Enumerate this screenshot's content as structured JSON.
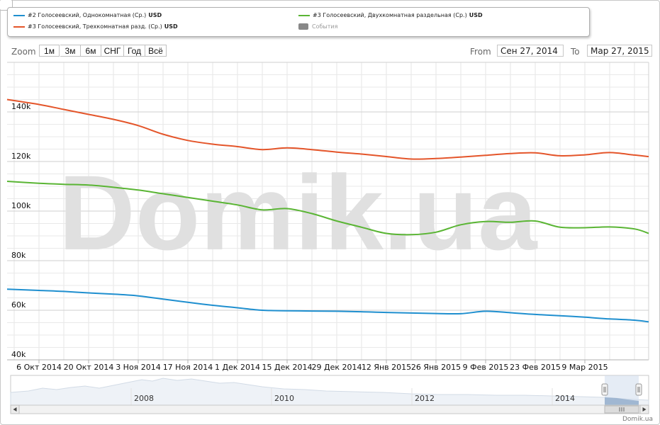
{
  "legend": [
    {
      "label": "#2 Голосеевский, Однокомнатная (Ср.)",
      "unit": "USD",
      "color": "#1f8fcf",
      "kind": "line"
    },
    {
      "label": "#3 Голосеевский, Двухкомнатная раздельная (Ср.)",
      "unit": "USD",
      "color": "#5ab534",
      "kind": "line"
    },
    {
      "label": "#3 Голосеевский, Трехкомнатная разд. (Ср.)",
      "unit": "USD",
      "color": "#e4552a",
      "kind": "line"
    },
    {
      "label": "События",
      "unit": "",
      "color": "#888888",
      "kind": "box"
    }
  ],
  "range_selector": {
    "zoom_label": "Zoom",
    "buttons": [
      "1м",
      "3м",
      "6м",
      "СНГ",
      "Год",
      "Всё"
    ],
    "from_label": "From",
    "from_value": "Сен 27, 2014",
    "to_label": "To",
    "to_value": "Мар 27, 2015"
  },
  "watermark": "Domik.ua",
  "credit": "Domik.ua",
  "chart_data": {
    "type": "line",
    "x_dates": [
      "2014-09-27",
      "2014-10-06",
      "2014-10-13",
      "2014-10-20",
      "2014-10-27",
      "2014-11-03",
      "2014-11-10",
      "2014-11-17",
      "2014-11-24",
      "2014-12-01",
      "2014-12-08",
      "2014-12-15",
      "2014-12-22",
      "2014-12-29",
      "2015-01-05",
      "2015-01-12",
      "2015-01-19",
      "2015-01-26",
      "2015-02-02",
      "2015-02-09",
      "2015-02-16",
      "2015-02-23",
      "2015-03-02",
      "2015-03-09",
      "2015-03-16",
      "2015-03-23",
      "2015-03-27"
    ],
    "series": [
      {
        "name": "#2 Голосеевский, Однокомнатная (Ср.)",
        "color": "#1f8fcf",
        "values": [
          68500,
          68000,
          67600,
          67000,
          66500,
          65800,
          64500,
          63200,
          62000,
          61000,
          60000,
          59800,
          59700,
          59600,
          59400,
          59100,
          58900,
          58700,
          58600,
          59600,
          59000,
          58300,
          57800,
          57200,
          56500,
          56000,
          55300
        ]
      },
      {
        "name": "#3 Голосеевский, Двухкомнатная раздельная (Ср.)",
        "color": "#5ab534",
        "values": [
          112000,
          111200,
          110800,
          110500,
          109600,
          108500,
          107000,
          105500,
          104000,
          102500,
          100500,
          101000,
          99000,
          96000,
          93500,
          91000,
          90500,
          91500,
          94500,
          95800,
          95500,
          96000,
          93500,
          93300,
          93600,
          92800,
          91000
        ]
      },
      {
        "name": "#3 Голосеевский, Трехкомнатная разд. (Ср.)",
        "color": "#e4552a",
        "values": [
          145000,
          143000,
          141000,
          139000,
          137000,
          134500,
          131000,
          128500,
          127000,
          126000,
          124800,
          125500,
          124800,
          123800,
          123000,
          122000,
          121000,
          121200,
          121800,
          122500,
          123200,
          123500,
          122300,
          122700,
          123600,
          122600,
          122000
        ]
      }
    ],
    "yticks": [
      "40k",
      "60k",
      "80k",
      "100k",
      "120k",
      "140k"
    ],
    "ytick_values": [
      40000,
      60000,
      80000,
      100000,
      120000,
      140000
    ],
    "ylim": [
      40000,
      160000
    ],
    "xticks": [
      "6 Окт 2014",
      "20 Окт 2014",
      "3 Ноя 2014",
      "17 Ноя 2014",
      "1 Дек 2014",
      "15 Дек 2014",
      "29 Дек 2014",
      "12 Янв 2015",
      "26 Янв 2015",
      "9 Фев 2015",
      "23 Фев 2015",
      "9 Мар 2015"
    ],
    "xtick_dates": [
      "2014-10-06",
      "2014-10-20",
      "2014-11-03",
      "2014-11-17",
      "2014-12-01",
      "2014-12-15",
      "2014-12-29",
      "2015-01-12",
      "2015-01-26",
      "2015-02-09",
      "2015-02-23",
      "2015-03-09"
    ],
    "grid": true,
    "navigator_labels": [
      "2008",
      "2010",
      "2012",
      "2014"
    ]
  }
}
